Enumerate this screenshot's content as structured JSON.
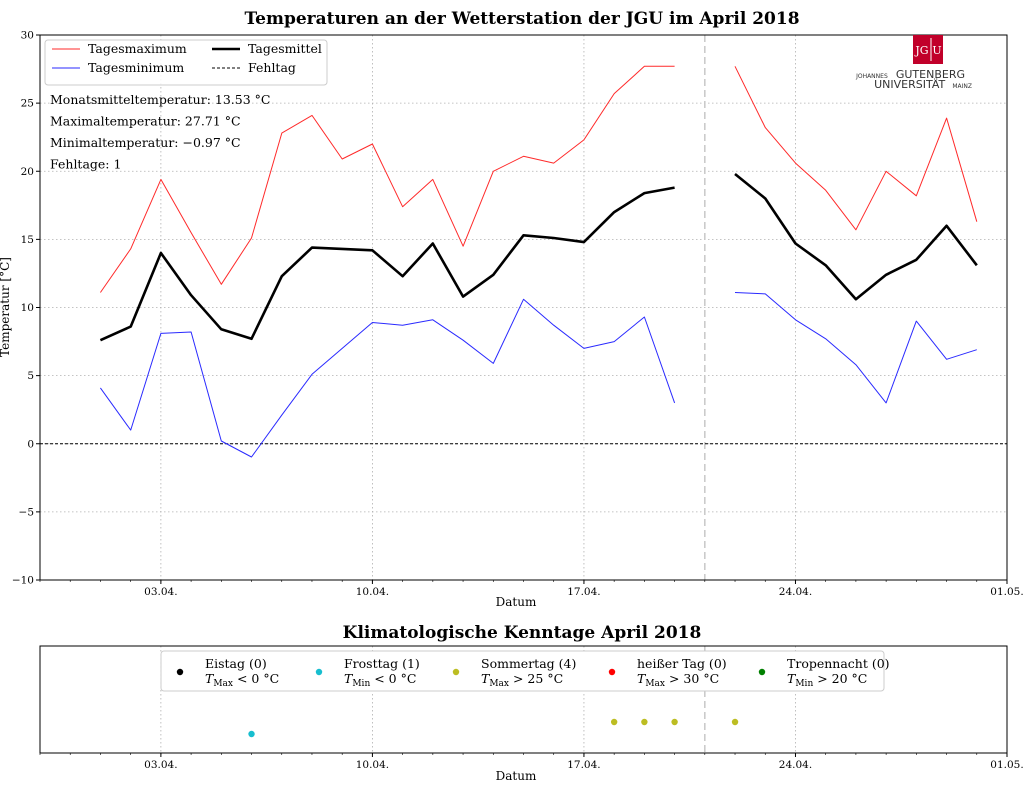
{
  "colors": {
    "max": "#ff2a2a",
    "min": "#2a2aff",
    "mean": "#000000",
    "fehltag": "#000000",
    "eistag": "#000000",
    "frosttag": "#17becf",
    "sommertag": "#bcbd22",
    "heisser_tag": "#ff0000",
    "tropennacht": "#008000",
    "logo": "#c1002a"
  },
  "logo": {
    "badge_left": "JG",
    "badge_right": "U",
    "line1_small": "JOHANNES",
    "line1_big": "GUTENBERG",
    "line2_big": "UNIVERSITÄT",
    "line2_small": "MAINZ",
    "icon": "jgu-logo-icon"
  },
  "chart_data": [
    {
      "type": "line",
      "title": "Temperaturen an der Wetterstation der JGU im April 2018",
      "xlabel": "Datum",
      "ylabel": "Temperatur [°C]",
      "ylim": [
        -10,
        30
      ],
      "xlim": [
        "2018-03-30",
        "2018-05-01"
      ],
      "grid": true,
      "yticks": [
        -10,
        -5,
        0,
        5,
        10,
        15,
        20,
        25,
        30
      ],
      "ytick_labels": [
        "−10",
        "−5",
        "0",
        "5",
        "10",
        "15",
        "20",
        "25",
        "30"
      ],
      "xticks": [
        "2018-04-03",
        "2018-04-10",
        "2018-04-17",
        "2018-04-24",
        "2018-05-01"
      ],
      "xtick_labels": [
        "03.04.",
        "10.04.",
        "17.04.",
        "24.04.",
        "01.05."
      ],
      "legend_position": "top-left",
      "series": [
        {
          "key": "max",
          "name": "Tagesmaximum",
          "dates": [
            "2018-04-01",
            "2018-04-02",
            "2018-04-03",
            "2018-04-04",
            "2018-04-05",
            "2018-04-06",
            "2018-04-07",
            "2018-04-08",
            "2018-04-09",
            "2018-04-10",
            "2018-04-11",
            "2018-04-12",
            "2018-04-13",
            "2018-04-14",
            "2018-04-15",
            "2018-04-16",
            "2018-04-17",
            "2018-04-18",
            "2018-04-19",
            "2018-04-20",
            "2018-04-22",
            "2018-04-23",
            "2018-04-24",
            "2018-04-25",
            "2018-04-26",
            "2018-04-27",
            "2018-04-28",
            "2018-04-29",
            "2018-04-30"
          ],
          "values": [
            11.1,
            14.3,
            19.4,
            15.5,
            11.7,
            15.1,
            22.8,
            24.1,
            20.9,
            22.0,
            17.4,
            19.4,
            14.5,
            20.0,
            21.1,
            20.6,
            22.3,
            25.7,
            27.7,
            27.7,
            27.7,
            23.2,
            20.6,
            18.6,
            15.7,
            20.0,
            18.2,
            23.9,
            16.3
          ]
        },
        {
          "key": "min",
          "name": "Tagesminimum",
          "dates": [
            "2018-04-01",
            "2018-04-02",
            "2018-04-03",
            "2018-04-04",
            "2018-04-05",
            "2018-04-06",
            "2018-04-07",
            "2018-04-08",
            "2018-04-09",
            "2018-04-10",
            "2018-04-11",
            "2018-04-12",
            "2018-04-13",
            "2018-04-14",
            "2018-04-15",
            "2018-04-16",
            "2018-04-17",
            "2018-04-18",
            "2018-04-19",
            "2018-04-20",
            "2018-04-22",
            "2018-04-23",
            "2018-04-24",
            "2018-04-25",
            "2018-04-26",
            "2018-04-27",
            "2018-04-28",
            "2018-04-29",
            "2018-04-30"
          ],
          "values": [
            4.1,
            1.0,
            8.1,
            8.2,
            0.2,
            -0.97,
            2.1,
            5.1,
            7.0,
            8.9,
            8.7,
            9.1,
            7.6,
            5.9,
            10.6,
            8.7,
            7.0,
            7.5,
            9.3,
            3.0,
            11.1,
            11.0,
            9.1,
            7.7,
            5.8,
            3.0,
            9.0,
            6.2,
            6.9
          ]
        },
        {
          "key": "mean",
          "name": "Tagesmittel",
          "dates": [
            "2018-04-01",
            "2018-04-02",
            "2018-04-03",
            "2018-04-04",
            "2018-04-05",
            "2018-04-06",
            "2018-04-07",
            "2018-04-08",
            "2018-04-09",
            "2018-04-10",
            "2018-04-11",
            "2018-04-12",
            "2018-04-13",
            "2018-04-14",
            "2018-04-15",
            "2018-04-16",
            "2018-04-17",
            "2018-04-18",
            "2018-04-19",
            "2018-04-20",
            "2018-04-22",
            "2018-04-23",
            "2018-04-24",
            "2018-04-25",
            "2018-04-26",
            "2018-04-27",
            "2018-04-28",
            "2018-04-29",
            "2018-04-30"
          ],
          "values": [
            7.6,
            8.6,
            14.0,
            10.9,
            8.4,
            7.7,
            12.3,
            14.4,
            14.3,
            14.2,
            12.3,
            14.7,
            10.8,
            12.4,
            15.3,
            15.1,
            14.8,
            17.0,
            18.4,
            18.8,
            19.8,
            18.0,
            14.7,
            13.1,
            10.6,
            12.4,
            13.5,
            16.0,
            13.1
          ]
        }
      ],
      "zero_line": {
        "name": "Fehltag",
        "y": 0
      },
      "missing_days": [
        "2018-04-21"
      ],
      "stats": [
        "Monatsmitteltemperatur: 13.53 °C",
        "Maximaltemperatur: 27.71 °C",
        "Minimaltemperatur: −0.97 °C",
        "Fehltage: 1"
      ]
    },
    {
      "type": "scatter",
      "title": "Klimatologische Kenntage April 2018",
      "xlabel": "Datum",
      "xlim": [
        "2018-03-30",
        "2018-05-01"
      ],
      "xticks": [
        "2018-04-03",
        "2018-04-10",
        "2018-04-17",
        "2018-04-24",
        "2018-05-01"
      ],
      "xtick_labels": [
        "03.04.",
        "10.04.",
        "17.04.",
        "24.04.",
        "01.05."
      ],
      "grid": true,
      "legend_position": "top-center",
      "missing_days": [
        "2018-04-21"
      ],
      "categories": [
        {
          "key": "eistag",
          "label": "Eistag (0)",
          "condition_sym": "T",
          "condition_sub": "Max",
          "condition_rest": " < 0 °C",
          "level": 5,
          "dates": []
        },
        {
          "key": "frosttag",
          "label": "Frosttag (1)",
          "condition_sym": "T",
          "condition_sub": "Min",
          "condition_rest": " < 0 °C",
          "level": 1,
          "dates": [
            "2018-04-06"
          ]
        },
        {
          "key": "sommertag",
          "label": "Sommertag (4)",
          "condition_sym": "T",
          "condition_sub": "Max",
          "condition_rest": " > 25 °C",
          "level": 2,
          "dates": [
            "2018-04-18",
            "2018-04-19",
            "2018-04-20",
            "2018-04-22"
          ]
        },
        {
          "key": "heisser_tag",
          "label": "heißer Tag (0)",
          "condition_sym": "T",
          "condition_sub": "Max",
          "condition_rest": " > 30 °C",
          "level": 3,
          "dates": []
        },
        {
          "key": "tropennacht",
          "label": "Tropennacht (0)",
          "condition_sym": "T",
          "condition_sub": "Min",
          "condition_rest": " > 20 °C",
          "level": 4,
          "dates": []
        }
      ]
    }
  ]
}
